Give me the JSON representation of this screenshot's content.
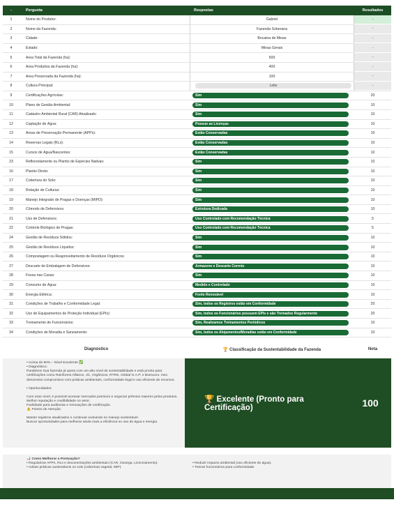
{
  "header": {
    "col_num": "-",
    "col_question": "Pergunta",
    "col_answer": "Respostas",
    "col_result": "Resultados"
  },
  "profile_rows": [
    {
      "n": "1",
      "q": "Nome do Produtor:",
      "a": "Gabriel",
      "r": "-"
    },
    {
      "n": "2",
      "q": "Nome da Fazenda:",
      "a": "Fazenda Soberana",
      "r": "-"
    },
    {
      "n": "3",
      "q": "Cidade:",
      "a": "Bocaina de Minas",
      "r": "-"
    },
    {
      "n": "4",
      "q": "Estado:",
      "a": "Minas Gerais",
      "r": "-"
    },
    {
      "n": "5",
      "q": "Área Total da Fazenda (ha):",
      "a": "500",
      "r": "-"
    },
    {
      "n": "6",
      "q": "Área Produtiva da Fazenda (ha):",
      "a": "400",
      "r": "-"
    },
    {
      "n": "7",
      "q": "Área Preservada da Fazenda (ha):",
      "a": "100",
      "r": "-"
    },
    {
      "n": "8",
      "q": "Cultura Principal:",
      "a": "Leite",
      "r": "-"
    }
  ],
  "eval_rows": [
    {
      "n": "9",
      "q": "Certificações Agrícolas:",
      "a": "Sim",
      "r": "20"
    },
    {
      "n": "10",
      "q": "Plano de Gestão Ambiental:",
      "a": "Sim",
      "r": "10"
    },
    {
      "n": "11",
      "q": "Cadastro Ambiental Rural (CAR) Atualizado:",
      "a": "Sim",
      "r": "10"
    },
    {
      "n": "12",
      "q": "Captação de Água:",
      "a": "Possuo as Licenças",
      "r": "10"
    },
    {
      "n": "13",
      "q": "Áreas de Preservação Permanente (APPs):",
      "a": "Estão Conservadas",
      "r": "10"
    },
    {
      "n": "14",
      "q": "Reservas Legais (RLs):",
      "a": "Estão Conservadas",
      "r": "10"
    },
    {
      "n": "15",
      "q": "Cursos de Água/Nascentes:",
      "a": "Estão Conservadas",
      "r": "10"
    },
    {
      "n": "23",
      "q": "Reflorestamento ou Plantio de Espécies Nativas:",
      "a": "Sim",
      "r": "10"
    },
    {
      "n": "16",
      "q": "Plantio Direto:",
      "a": "Sim",
      "r": "10"
    },
    {
      "n": "17",
      "q": "Cobertura do Solo:",
      "a": "Sim",
      "r": "10"
    },
    {
      "n": "18",
      "q": "Rotação de Culturas:",
      "a": "Sim",
      "r": "10"
    },
    {
      "n": "19",
      "q": "Manejo Integrado de Pragas e Doenças (MIPD):",
      "a": "Sim",
      "r": "10"
    },
    {
      "n": "20",
      "q": "Cômodo de Defensivos:",
      "a": "Estrutura Dedicada",
      "r": "10"
    },
    {
      "n": "21",
      "q": "Uso de Defensivos:",
      "a": "Uso Controlado com Recomendação Técnica",
      "r": "5"
    },
    {
      "n": "22",
      "q": "Controle Biológico de Pragas:",
      "a": "Uso Controlado com Recomendação Técnica",
      "r": "5"
    },
    {
      "n": "24",
      "q": "Gestão de Resíduos Sólidos:",
      "a": "Sim",
      "r": "10"
    },
    {
      "n": "25",
      "q": "Gestão de Resíduos Líquidos:",
      "a": "Sim",
      "r": "10"
    },
    {
      "n": "26",
      "q": "Compostagem ou Reaproveitamento de Resíduos Orgânicos:",
      "a": "Sim",
      "r": "10"
    },
    {
      "n": "27",
      "q": "Descarte de Embalagem de Defensivos:",
      "a": "Armazeno e Descarte Correto",
      "r": "10"
    },
    {
      "n": "28",
      "q": "Fossa nas Casas:",
      "a": "Sim",
      "r": "10"
    },
    {
      "n": "29",
      "q": "Consumo de Água:",
      "a": "Medido e Controlado",
      "r": "10"
    },
    {
      "n": "30",
      "q": "Energia Elétrica:",
      "a": "Fonte Renovável",
      "r": "10"
    },
    {
      "n": "31",
      "q": "Condições de Trabalho e Conformidade Legal:",
      "a": "Sim, todos os Registros estão em Conformidade",
      "r": "20"
    },
    {
      "n": "32",
      "q": "Uso de Equipamentos de Proteção Individual (EPIs):",
      "a": "Sim, todos os Funcionários possuem EPIs e são Treinados Regularmente",
      "r": "20"
    },
    {
      "n": "33",
      "q": "Treinamento de Funcionários:",
      "a": "Sim, Realizamos Treinamentos Periódicos",
      "r": "10"
    },
    {
      "n": "34",
      "q": "Condições de Moradia e Saneamento:",
      "a": "Sim, todos os Alojamentos/Moradias estão em Conformidade",
      "r": "10"
    }
  ],
  "section": {
    "diag_title": "Diagnóstico",
    "class_title": "Classificação da Sustentabilidade da Fazenda",
    "note_title": "Nota",
    "class_icon": "trophy-icon"
  },
  "diagnostic": {
    "line1": "Acima de 90% – Nível Excelente ✅",
    "line2": "Diagnóstico:",
    "p1": "Parabéns! Sua fazenda já opera com um alto nível de sustentabilidade e está pronta para certificações como Rainforest Alliance, 4C, Orgânicos, RTRS, Global G.A.P. e Bonsucro. Isso demonstra compromisso com práticas ambientais, conformidade legal e uso eficiente de recursos.",
    "line3": "Oportunidades:",
    "p2": "Com esse nível, é possível acessar mercados premium e negociar prêmios maiores pelos produtos.",
    "p3": "Melhor reputação e credibilidade no setor.",
    "p4": "Facilidade para auditorias e renovações de certificação.",
    "line4": "Pontos de Atenção:",
    "p5": "Manter registros atualizados e continuar evoluindo no manejo sustentável.",
    "p6": "Buscar oportunidades para melhorar ainda mais a eficiência no uso de água e energia."
  },
  "classification": {
    "label": "Excelente (Pronto para Certificação)",
    "score": "100"
  },
  "tips": {
    "title": "Como Melhorar a Pontuação?",
    "left": [
      "Regularizar APPs, RLs e documentações ambientais (CAR, Outorga, Licenciamento).",
      "Adotar práticas sustentáveis no solo (cobertura vegetal, MIP)."
    ],
    "right": [
      "Reduzir impacto ambiental (uso eficiente de água).",
      "Treinar funcionários para conformidade."
    ]
  },
  "colors": {
    "dark_green": "#1d4d24",
    "pill_green": "#196a35",
    "light_green": "#d3eed9"
  }
}
